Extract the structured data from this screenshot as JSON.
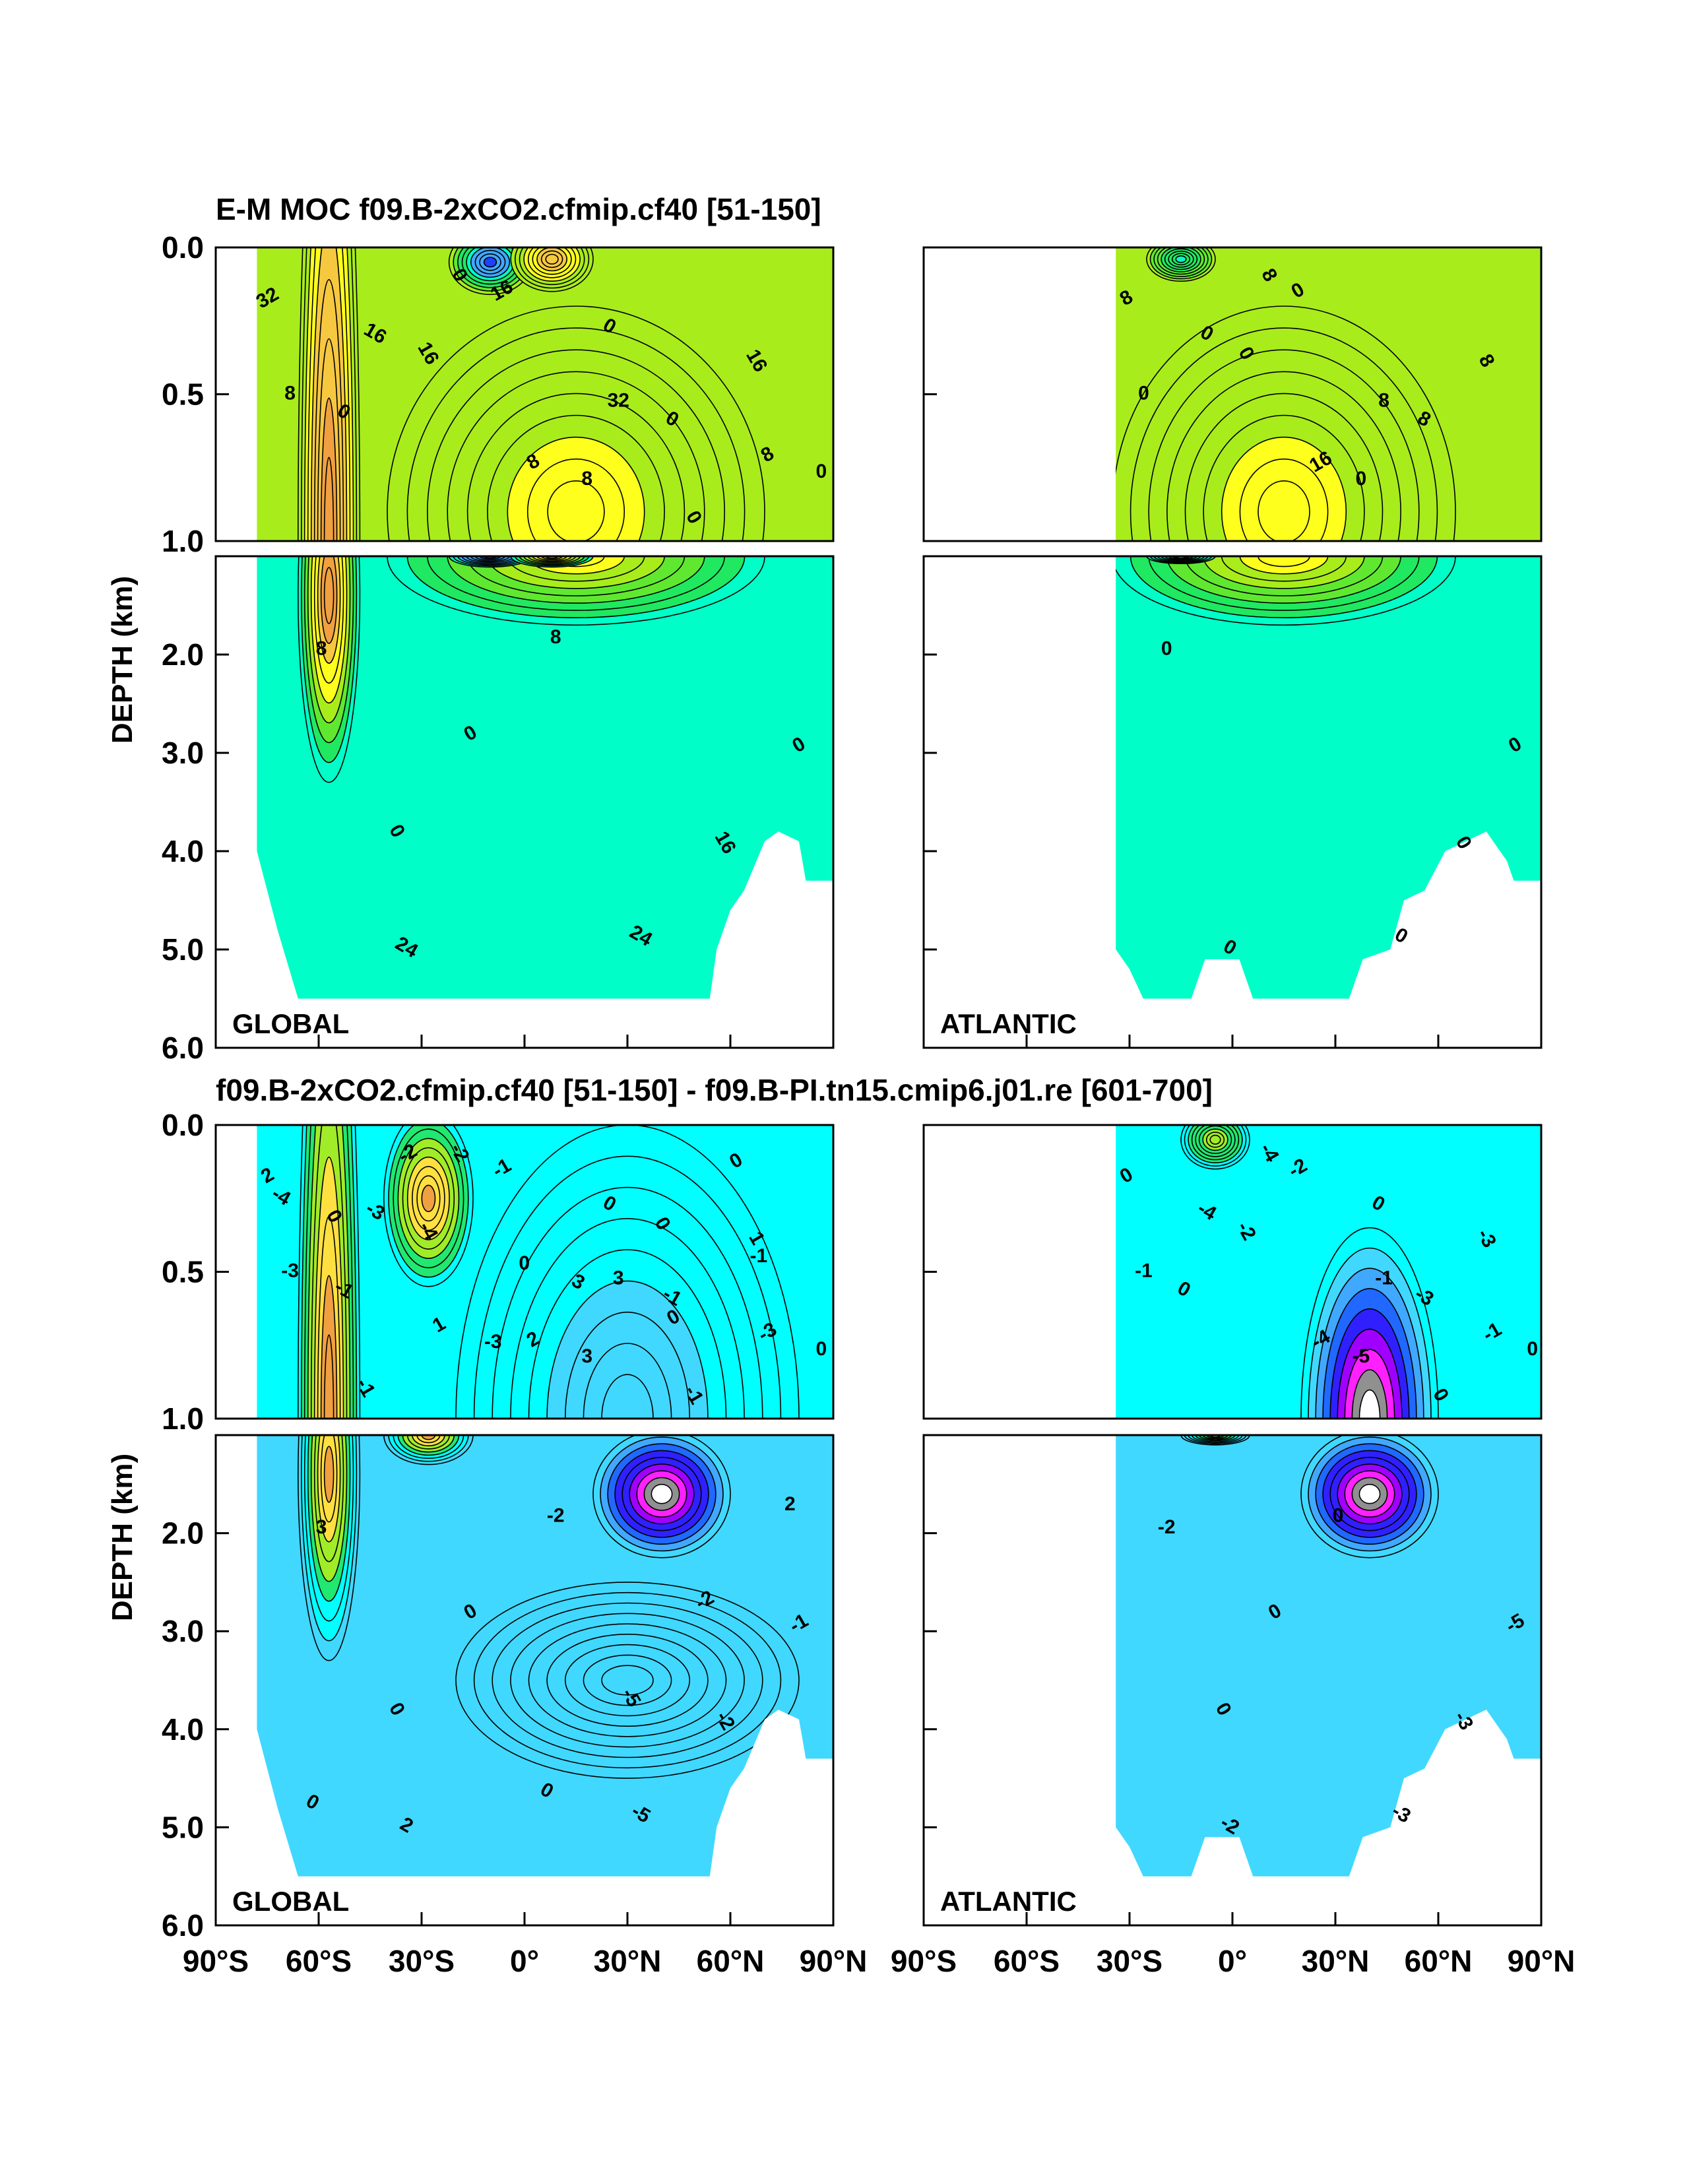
{
  "figure": {
    "title_top": "E-M MOC  f09.B-2xCO2.cfmip.cf40 [51-150]",
    "title_bottom": "f09.B-2xCO2.cfmip.cf40 [51-150] - f09.B-PI.tn15.cmip6.j01.re [601-700]"
  },
  "chart_data": [
    {
      "type": "contour",
      "panel": "top-left",
      "basin_label": "GLOBAL",
      "ylabel": "DEPTH (km)",
      "xlim": [
        -90,
        90
      ],
      "ylim_upper": [
        0.0,
        1.0
      ],
      "ylim_lower": [
        1.0,
        6.0
      ],
      "x_ticks": [
        "90°S",
        "60°S",
        "30°S",
        "0°",
        "30°N",
        "60°N",
        "90°N"
      ],
      "y_ticks_upper": [
        "0.0",
        "0.5",
        "1.0"
      ],
      "y_ticks_lower": [
        "2.0",
        "3.0",
        "4.0",
        "5.0",
        "6.0"
      ],
      "contour_labels": [
        "32",
        "32",
        "24",
        "16",
        "8",
        "8",
        "0",
        "0",
        "0",
        "8",
        "16",
        "16",
        "16",
        "8",
        "24",
        "16",
        "8",
        "8",
        "0",
        "0",
        "0",
        "0",
        "0",
        "0"
      ],
      "features": [
        {
          "kind": "cell",
          "lat": -57,
          "depth": 1.4,
          "value": 34,
          "w": 9,
          "h": 3.8
        },
        {
          "kind": "cell",
          "lat": 15,
          "depth": 0.9,
          "value": 15,
          "w": 55,
          "h": 1.4
        },
        {
          "kind": "cell",
          "lat": -10,
          "depth": 0.05,
          "value": -14,
          "w": 12,
          "h": 0.22
        },
        {
          "kind": "cell",
          "lat": 8,
          "depth": 0.04,
          "value": 26,
          "w": 12,
          "h": 0.22
        }
      ]
    },
    {
      "type": "contour",
      "panel": "top-right",
      "basin_label": "ATLANTIC",
      "xlim": [
        -90,
        90
      ],
      "x_start": -34,
      "contour_labels": [
        "8",
        "8",
        "0",
        "8",
        "16",
        "0",
        "8",
        "8",
        "0",
        "0",
        "0",
        "0",
        "0",
        "0",
        "0",
        "0"
      ],
      "features": [
        {
          "kind": "cell",
          "lat": 15,
          "depth": 0.9,
          "value": 15,
          "w": 50,
          "h": 1.4
        },
        {
          "kind": "cell",
          "lat": -15,
          "depth": 0.04,
          "value": -3,
          "w": 10,
          "h": 0.15
        }
      ]
    },
    {
      "type": "contour",
      "panel": "bottom-left",
      "basin_label": "GLOBAL",
      "ylabel": "DEPTH (km)",
      "contour_labels": [
        "2",
        "3",
        "2",
        "1",
        "2",
        "3",
        "-1",
        "-2",
        "-1",
        "3",
        "-3",
        "-2",
        "-1",
        "-3",
        "-5",
        "-4",
        "-3",
        "-2",
        "-1",
        "-1",
        "0",
        "0",
        "0",
        "0",
        "0",
        "0",
        "0",
        "0",
        "1",
        "2",
        "3",
        "-1",
        "-2",
        "-3",
        "-4",
        "-5",
        "-2",
        "-1",
        "0",
        "0",
        "0"
      ],
      "features": [
        {
          "kind": "cell",
          "lat": -57,
          "depth": 1.4,
          "value": 3,
          "w": 9,
          "h": 3.8
        },
        {
          "kind": "cell",
          "lat": -28,
          "depth": 0.25,
          "value": 2.8,
          "w": 13,
          "h": 0.6
        },
        {
          "kind": "cell",
          "lat": 40,
          "depth": 1.6,
          "value": -8.5,
          "w": 20,
          "h": 1.3
        },
        {
          "kind": "cell",
          "lat": 30,
          "depth": 3.5,
          "value": -1.5,
          "w": 50,
          "h": 2
        }
      ]
    },
    {
      "type": "contour",
      "panel": "bottom-right",
      "basin_label": "ATLANTIC",
      "x_start": -34,
      "contour_labels": [
        "0",
        "-1",
        "-2",
        "-3",
        "-4",
        "-2",
        "-3",
        "-4",
        "-5",
        "-5",
        "-4",
        "-3",
        "-2",
        "-1",
        "-3",
        "-2",
        "-1",
        "0",
        "0",
        "0",
        "0",
        "0",
        "0",
        "0"
      ],
      "features": [
        {
          "kind": "cell",
          "lat": 40,
          "depth": 1.6,
          "value": -8.5,
          "w": 20,
          "h": 1.3
        },
        {
          "kind": "cell",
          "lat": -5,
          "depth": 0.05,
          "value": 1,
          "w": 10,
          "h": 0.2
        }
      ]
    }
  ]
}
